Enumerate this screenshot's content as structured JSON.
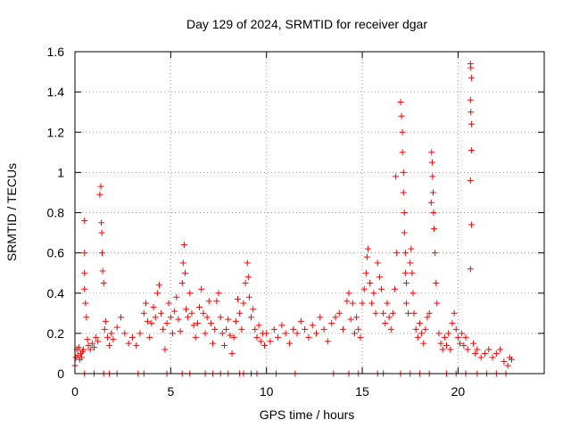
{
  "chart_data": {
    "type": "scatter",
    "title": "Day 129 of 2024, SRMTID for receiver dgar",
    "xlabel": "GPS time / hours",
    "ylabel": "SRMTID / TECUs",
    "xlim": [
      0,
      24.5
    ],
    "ylim": [
      0,
      1.6
    ],
    "x_ticks": [
      0,
      5,
      10,
      15,
      20
    ],
    "y_ticks": [
      0,
      0.2,
      0.4,
      0.6,
      0.8,
      1.0,
      1.2,
      1.4,
      1.6
    ],
    "x_tick_labels": [
      "0",
      "5",
      "10",
      "15",
      "20"
    ],
    "y_tick_labels": [
      "0",
      "0.2",
      "0.4",
      "0.6",
      "0.8",
      "1",
      "1.2",
      "1.4",
      "1.6"
    ],
    "grid": true,
    "legend": "none",
    "marker": "+",
    "series": [
      {
        "name": "SRMTID",
        "color": "#ff0000",
        "points": [
          [
            0.0,
            0.04
          ],
          [
            0.05,
            0.08
          ],
          [
            0.1,
            0.12
          ],
          [
            0.15,
            0.09
          ],
          [
            0.2,
            0.13
          ],
          [
            0.25,
            0.07
          ],
          [
            0.3,
            0.1
          ],
          [
            0.35,
            0.08
          ],
          [
            0.4,
            0.11
          ],
          [
            0.45,
            0.12
          ],
          [
            0.5,
            0.76
          ],
          [
            0.5,
            0.6
          ],
          [
            0.5,
            0.5
          ],
          [
            0.5,
            0.42
          ],
          [
            0.55,
            0.35
          ],
          [
            0.6,
            0.28
          ],
          [
            0.65,
            0.17
          ],
          [
            0.7,
            0.14
          ],
          [
            0.8,
            0.12
          ],
          [
            0.9,
            0.15
          ],
          [
            1.0,
            0.13
          ],
          [
            1.1,
            0.18
          ],
          [
            1.2,
            0.16
          ],
          [
            1.3,
            0.89
          ],
          [
            1.35,
            0.93
          ],
          [
            1.38,
            0.75
          ],
          [
            1.4,
            0.7
          ],
          [
            1.42,
            0.6
          ],
          [
            1.45,
            0.51
          ],
          [
            1.5,
            0.45
          ],
          [
            1.55,
            0.22
          ],
          [
            1.6,
            0.26
          ],
          [
            1.7,
            0.18
          ],
          [
            1.8,
            0.14
          ],
          [
            1.9,
            0.2
          ],
          [
            2.0,
            0.17
          ],
          [
            2.2,
            0.23
          ],
          [
            2.4,
            0.28
          ],
          [
            2.6,
            0.2
          ],
          [
            2.8,
            0.15
          ],
          [
            3.0,
            0.18
          ],
          [
            3.2,
            0.14
          ],
          [
            3.4,
            0.2
          ],
          [
            3.6,
            0.3
          ],
          [
            3.7,
            0.35
          ],
          [
            3.8,
            0.26
          ],
          [
            3.9,
            0.18
          ],
          [
            4.0,
            0.25
          ],
          [
            4.1,
            0.33
          ],
          [
            4.2,
            0.28
          ],
          [
            4.3,
            0.4
          ],
          [
            4.4,
            0.44
          ],
          [
            4.5,
            0.3
          ],
          [
            4.6,
            0.22
          ],
          [
            4.7,
            0.12
          ],
          [
            4.8,
            0.25
          ],
          [
            4.9,
            0.35
          ],
          [
            5.0,
            0.28
          ],
          [
            5.1,
            0.2
          ],
          [
            5.2,
            0.31
          ],
          [
            5.3,
            0.38
          ],
          [
            5.4,
            0.27
          ],
          [
            5.5,
            0.21
          ],
          [
            5.6,
            0.45
          ],
          [
            5.65,
            0.55
          ],
          [
            5.7,
            0.64
          ],
          [
            5.75,
            0.5
          ],
          [
            5.8,
            0.32
          ],
          [
            5.9,
            0.28
          ],
          [
            6.0,
            0.4
          ],
          [
            6.1,
            0.3
          ],
          [
            6.2,
            0.24
          ],
          [
            6.3,
            0.18
          ],
          [
            6.4,
            0.25
          ],
          [
            6.5,
            0.33
          ],
          [
            6.6,
            0.42
          ],
          [
            6.7,
            0.3
          ],
          [
            6.8,
            0.2
          ],
          [
            6.9,
            0.28
          ],
          [
            7.0,
            0.36
          ],
          [
            7.1,
            0.25
          ],
          [
            7.2,
            0.15
          ],
          [
            7.3,
            0.22
          ],
          [
            7.4,
            0.36
          ],
          [
            7.5,
            0.4
          ],
          [
            7.6,
            0.28
          ],
          [
            7.7,
            0.2
          ],
          [
            7.8,
            0.14
          ],
          [
            7.9,
            0.22
          ],
          [
            8.0,
            0.27
          ],
          [
            8.1,
            0.19
          ],
          [
            8.2,
            0.1
          ],
          [
            8.3,
            0.18
          ],
          [
            8.4,
            0.26
          ],
          [
            8.5,
            0.37
          ],
          [
            8.6,
            0.3
          ],
          [
            8.7,
            0.22
          ],
          [
            8.8,
            0.35
          ],
          [
            8.9,
            0.45
          ],
          [
            9.0,
            0.55
          ],
          [
            9.05,
            0.48
          ],
          [
            9.1,
            0.38
          ],
          [
            9.2,
            0.28
          ],
          [
            9.3,
            0.32
          ],
          [
            9.4,
            0.22
          ],
          [
            9.5,
            0.18
          ],
          [
            9.6,
            0.24
          ],
          [
            9.7,
            0.16
          ],
          [
            9.8,
            0.2
          ],
          [
            9.9,
            0.14
          ],
          [
            10.0,
            0.2
          ],
          [
            10.2,
            0.16
          ],
          [
            10.4,
            0.22
          ],
          [
            10.6,
            0.18
          ],
          [
            10.8,
            0.24
          ],
          [
            11.0,
            0.2
          ],
          [
            11.2,
            0.15
          ],
          [
            11.4,
            0.22
          ],
          [
            11.6,
            0.2
          ],
          [
            11.8,
            0.26
          ],
          [
            12.0,
            0.22
          ],
          [
            12.2,
            0.18
          ],
          [
            12.4,
            0.24
          ],
          [
            12.6,
            0.2
          ],
          [
            12.8,
            0.28
          ],
          [
            13.0,
            0.22
          ],
          [
            13.2,
            0.16
          ],
          [
            13.4,
            0.25
          ],
          [
            13.6,
            0.28
          ],
          [
            13.8,
            0.3
          ],
          [
            14.0,
            0.22
          ],
          [
            14.2,
            0.36
          ],
          [
            14.3,
            0.4
          ],
          [
            14.4,
            0.27
          ],
          [
            14.5,
            0.35
          ],
          [
            14.6,
            0.2
          ],
          [
            14.7,
            0.28
          ],
          [
            14.8,
            0.22
          ],
          [
            14.9,
            0.18
          ],
          [
            15.0,
            0.35
          ],
          [
            15.1,
            0.42
          ],
          [
            15.2,
            0.5
          ],
          [
            15.25,
            0.58
          ],
          [
            15.3,
            0.62
          ],
          [
            15.4,
            0.45
          ],
          [
            15.5,
            0.35
          ],
          [
            15.6,
            0.4
          ],
          [
            15.7,
            0.3
          ],
          [
            15.8,
            0.55
          ],
          [
            15.9,
            0.48
          ],
          [
            16.0,
            0.42
          ],
          [
            16.1,
            0.3
          ],
          [
            16.2,
            0.25
          ],
          [
            16.3,
            0.35
          ],
          [
            16.4,
            0.28
          ],
          [
            16.5,
            0.22
          ],
          [
            16.6,
            0.3
          ],
          [
            16.7,
            0.42
          ],
          [
            16.75,
            0.98
          ],
          [
            16.8,
            0.6
          ],
          [
            17.0,
            1.35
          ],
          [
            17.05,
            1.28
          ],
          [
            17.1,
            1.2
          ],
          [
            17.1,
            1.1
          ],
          [
            17.15,
            1.0
          ],
          [
            17.15,
            0.9
          ],
          [
            17.2,
            0.8
          ],
          [
            17.2,
            0.7
          ],
          [
            17.25,
            0.6
          ],
          [
            17.25,
            0.5
          ],
          [
            17.3,
            0.45
          ],
          [
            17.3,
            0.35
          ],
          [
            17.4,
            0.3
          ],
          [
            17.5,
            0.55
          ],
          [
            17.55,
            0.62
          ],
          [
            17.6,
            0.5
          ],
          [
            17.65,
            0.4
          ],
          [
            17.7,
            0.3
          ],
          [
            17.8,
            0.22
          ],
          [
            17.9,
            0.18
          ],
          [
            18.0,
            0.25
          ],
          [
            18.1,
            0.2
          ],
          [
            18.2,
            0.15
          ],
          [
            18.3,
            0.22
          ],
          [
            18.4,
            0.28
          ],
          [
            18.5,
            0.3
          ],
          [
            18.6,
            0.85
          ],
          [
            18.62,
            1.1
          ],
          [
            18.65,
            1.05
          ],
          [
            18.67,
            0.98
          ],
          [
            18.7,
            0.9
          ],
          [
            18.72,
            0.8
          ],
          [
            18.75,
            0.72
          ],
          [
            18.8,
            0.6
          ],
          [
            18.85,
            0.45
          ],
          [
            18.9,
            0.35
          ],
          [
            19.0,
            0.2
          ],
          [
            19.1,
            0.15
          ],
          [
            19.2,
            0.12
          ],
          [
            19.3,
            0.18
          ],
          [
            19.4,
            0.14
          ],
          [
            19.5,
            0.2
          ],
          [
            19.6,
            0.12
          ],
          [
            19.7,
            0.25
          ],
          [
            19.8,
            0.3
          ],
          [
            19.9,
            0.22
          ],
          [
            20.0,
            0.18
          ],
          [
            20.1,
            0.15
          ],
          [
            20.2,
            0.2
          ],
          [
            20.3,
            0.14
          ],
          [
            20.4,
            0.18
          ],
          [
            20.5,
            0.12
          ],
          [
            20.65,
            1.54
          ],
          [
            20.67,
            1.52
          ],
          [
            20.7,
            1.47
          ],
          [
            20.65,
            1.36
          ],
          [
            20.67,
            1.3
          ],
          [
            20.7,
            1.24
          ],
          [
            20.7,
            1.11
          ],
          [
            20.65,
            0.96
          ],
          [
            20.7,
            0.74
          ],
          [
            20.65,
            0.52
          ],
          [
            20.8,
            0.15
          ],
          [
            20.9,
            0.1
          ],
          [
            21.0,
            0.12
          ],
          [
            21.2,
            0.08
          ],
          [
            21.4,
            0.1
          ],
          [
            21.6,
            0.12
          ],
          [
            21.8,
            0.08
          ],
          [
            22.0,
            0.1
          ],
          [
            22.2,
            0.12
          ],
          [
            22.4,
            0.06
          ],
          [
            22.6,
            0.04
          ],
          [
            22.7,
            0.08
          ],
          [
            22.8,
            0.07
          ],
          [
            0.5,
            0.0
          ],
          [
            1.0,
            0.0
          ],
          [
            1.5,
            0.0
          ],
          [
            1.8,
            0.0
          ],
          [
            2.2,
            0.0
          ],
          [
            3.3,
            0.0
          ],
          [
            3.6,
            0.0
          ],
          [
            4.8,
            0.0
          ],
          [
            5.6,
            0.0
          ],
          [
            6.0,
            0.0
          ],
          [
            6.8,
            0.0
          ],
          [
            7.2,
            0.0
          ],
          [
            7.6,
            0.0
          ],
          [
            8.0,
            0.0
          ],
          [
            8.6,
            0.0
          ],
          [
            8.8,
            0.0
          ],
          [
            9.2,
            0.0
          ],
          [
            9.5,
            0.0
          ],
          [
            10.5,
            0.0
          ],
          [
            11.5,
            0.0
          ],
          [
            13.5,
            0.0
          ],
          [
            14.3,
            0.0
          ],
          [
            14.8,
            0.0
          ],
          [
            15.8,
            0.0
          ],
          [
            16.1,
            0.0
          ],
          [
            17.0,
            0.0
          ],
          [
            17.5,
            0.0
          ],
          [
            18.0,
            0.0
          ],
          [
            18.5,
            0.0
          ],
          [
            19.4,
            0.0
          ],
          [
            19.9,
            0.0
          ],
          [
            20.4,
            0.0
          ],
          [
            21.0,
            0.0
          ],
          [
            21.5,
            0.0
          ],
          [
            22.0,
            0.0
          ],
          [
            22.5,
            0.0
          ]
        ]
      }
    ]
  }
}
